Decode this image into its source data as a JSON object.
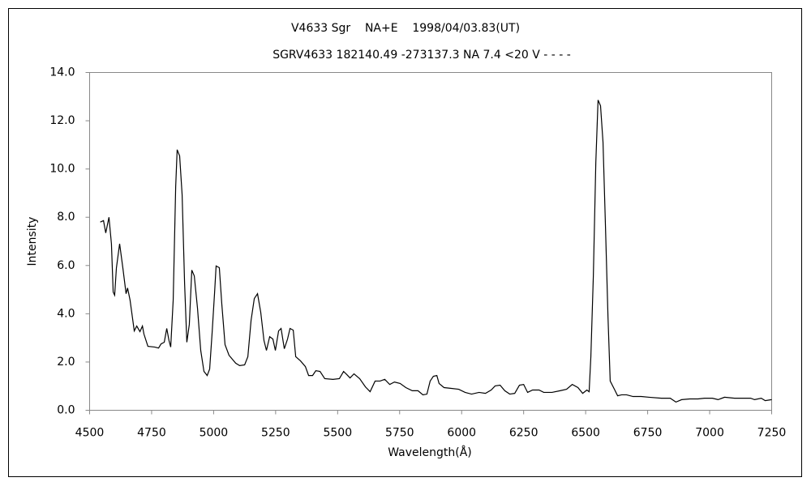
{
  "chart_data": {
    "type": "line",
    "title": "V4633 Sgr    NA+E    1998/04/03.83(UT)",
    "subtitle": "SGRV4633 182140.49 -273137.3 NA 7.4 <20 V - - - -",
    "x_label": "Wavelength(Å)",
    "y_label": "Intensity",
    "color": "#000000",
    "grid": false,
    "xlim": [
      4500,
      7250
    ],
    "xticks": [
      4500,
      4750,
      5000,
      5250,
      5500,
      5750,
      6000,
      6250,
      6500,
      6750,
      7000,
      7250
    ],
    "ylim": [
      0,
      14
    ],
    "yticks": [
      {
        "value": 0,
        "label": "0.0"
      },
      {
        "value": 2,
        "label": "2.0"
      },
      {
        "value": 4,
        "label": "4.0"
      },
      {
        "value": 6,
        "label": "6.0"
      },
      {
        "value": 8,
        "label": "8.0"
      },
      {
        "value": 10,
        "label": "10.0"
      },
      {
        "value": 12,
        "label": "12.0"
      },
      {
        "value": 14,
        "label": "14.0"
      }
    ],
    "x": [
      4543,
      4556,
      4565,
      4578,
      4588,
      4595,
      4601,
      4608,
      4621,
      4634,
      4647,
      4653,
      4663,
      4680,
      4690,
      4703,
      4713,
      4719,
      4735,
      4762,
      4778,
      4788,
      4801,
      4811,
      4820,
      4827,
      4837,
      4847,
      4853,
      4863,
      4873,
      4883,
      4892,
      4902,
      4912,
      4922,
      4935,
      4948,
      4961,
      4974,
      4984,
      4994,
      5004,
      5010,
      5023,
      5033,
      5046,
      5062,
      5089,
      5105,
      5125,
      5138,
      5151,
      5164,
      5177,
      5190,
      5203,
      5213,
      5226,
      5239,
      5249,
      5262,
      5272,
      5285,
      5298,
      5308,
      5321,
      5331,
      5350,
      5370,
      5383,
      5399,
      5412,
      5429,
      5448,
      5481,
      5507,
      5524,
      5537,
      5550,
      5566,
      5589,
      5612,
      5631,
      5651,
      5671,
      5690,
      5710,
      5729,
      5752,
      5775,
      5801,
      5824,
      5844,
      5860,
      5873,
      5886,
      5900,
      5909,
      5929,
      5955,
      5988,
      6014,
      6040,
      6070,
      6096,
      6119,
      6135,
      6155,
      6174,
      6194,
      6214,
      6233,
      6250,
      6266,
      6286,
      6312,
      6331,
      6364,
      6397,
      6423,
      6446,
      6469,
      6488,
      6505,
      6514,
      6521,
      6531,
      6541,
      6550,
      6560,
      6570,
      6580,
      6590,
      6599,
      6616,
      6629,
      6645,
      6665,
      6691,
      6724,
      6756,
      6805,
      6841,
      6864,
      6887,
      6920,
      6953,
      6979,
      7011,
      7034,
      7060,
      7100,
      7132,
      7165,
      7181,
      7208,
      7224,
      7250
    ],
    "values": [
      7.8,
      7.86,
      7.35,
      8.0,
      6.9,
      4.9,
      4.77,
      5.9,
      6.9,
      5.9,
      4.83,
      5.07,
      4.57,
      3.29,
      3.49,
      3.26,
      3.49,
      3.16,
      2.65,
      2.62,
      2.58,
      2.75,
      2.82,
      3.39,
      2.89,
      2.62,
      4.57,
      9.26,
      10.8,
      10.54,
      8.93,
      5.24,
      2.82,
      3.56,
      5.81,
      5.57,
      4.23,
      2.48,
      1.61,
      1.44,
      1.71,
      3.22,
      4.9,
      5.98,
      5.91,
      4.4,
      2.72,
      2.28,
      1.95,
      1.85,
      1.88,
      2.22,
      3.73,
      4.63,
      4.83,
      4.06,
      2.89,
      2.48,
      3.05,
      2.95,
      2.48,
      3.29,
      3.39,
      2.55,
      2.95,
      3.39,
      3.32,
      2.22,
      2.05,
      1.81,
      1.44,
      1.44,
      1.64,
      1.61,
      1.31,
      1.28,
      1.31,
      1.61,
      1.48,
      1.34,
      1.51,
      1.31,
      0.97,
      0.77,
      1.21,
      1.21,
      1.28,
      1.07,
      1.17,
      1.11,
      0.94,
      0.81,
      0.81,
      0.64,
      0.67,
      1.21,
      1.41,
      1.44,
      1.11,
      0.94,
      0.91,
      0.87,
      0.74,
      0.67,
      0.74,
      0.7,
      0.84,
      1.01,
      1.04,
      0.81,
      0.67,
      0.7,
      1.04,
      1.07,
      0.74,
      0.84,
      0.84,
      0.74,
      0.74,
      0.81,
      0.87,
      1.07,
      0.94,
      0.7,
      0.84,
      0.77,
      2.22,
      5.57,
      10.27,
      12.86,
      12.62,
      11.11,
      7.59,
      3.89,
      1.21,
      0.87,
      0.6,
      0.64,
      0.64,
      0.57,
      0.57,
      0.54,
      0.5,
      0.5,
      0.34,
      0.44,
      0.47,
      0.47,
      0.5,
      0.5,
      0.44,
      0.54,
      0.5,
      0.5,
      0.5,
      0.44,
      0.5,
      0.4,
      0.44
    ]
  }
}
